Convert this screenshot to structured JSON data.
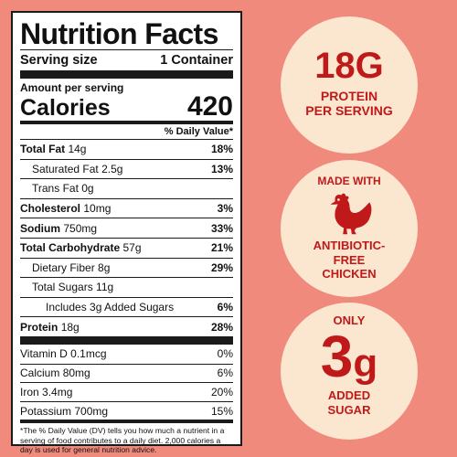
{
  "label": {
    "title": "Nutrition Facts",
    "serving_size_label": "Serving size",
    "serving_size_value": "1 Container",
    "amount_per_serving": "Amount per serving",
    "calories_label": "Calories",
    "calories_value": "420",
    "daily_value_header": "% Daily Value*",
    "nutrients": [
      {
        "name": "Total Fat",
        "amount": "14g",
        "dv": "18%"
      },
      {
        "name": "Saturated Fat",
        "amount": "2.5g",
        "dv": "13%"
      },
      {
        "name": "Trans Fat",
        "amount": "0g",
        "dv": ""
      },
      {
        "name": "Cholesterol",
        "amount": "10mg",
        "dv": "3%"
      },
      {
        "name": "Sodium",
        "amount": "750mg",
        "dv": "33%"
      },
      {
        "name": "Total Carbohydrate",
        "amount": "57g",
        "dv": "21%"
      },
      {
        "name": "Dietary Fiber",
        "amount": "8g",
        "dv": "29%"
      },
      {
        "name": "Total Sugars",
        "amount": "11g",
        "dv": ""
      },
      {
        "name": "Includes 3g Added Sugars",
        "amount": "",
        "dv": "6%"
      },
      {
        "name": "Protein",
        "amount": "18g",
        "dv": "28%"
      }
    ],
    "vitamins": [
      {
        "name": "Vitamin D",
        "amount": "0.1mcg",
        "dv": "0%"
      },
      {
        "name": "Calcium",
        "amount": "80mg",
        "dv": "6%"
      },
      {
        "name": "Iron",
        "amount": "3.4mg",
        "dv": "20%"
      },
      {
        "name": "Potassium",
        "amount": "700mg",
        "dv": "15%"
      }
    ],
    "footnote": "*The % Daily Value (DV) tells you how much a nutrient in a serving of food contributes to a daily diet. 2,000 calories a day is used for general nutrition advice."
  },
  "badges": {
    "protein": {
      "value": "18G",
      "line1": "PROTEIN",
      "line2": "PER SERVING"
    },
    "chicken": {
      "top": "MADE WITH",
      "icon": "chicken-icon",
      "line1": "ANTIBIOTIC-",
      "line2": "FREE",
      "line3": "CHICKEN"
    },
    "sugar": {
      "top": "ONLY",
      "number": "3",
      "unit": "g",
      "line1": "ADDED",
      "line2": "SUGAR"
    }
  },
  "colors": {
    "background": "#f08a7c",
    "badge_fill": "#fbe7d0",
    "badge_text": "#c0191a"
  }
}
